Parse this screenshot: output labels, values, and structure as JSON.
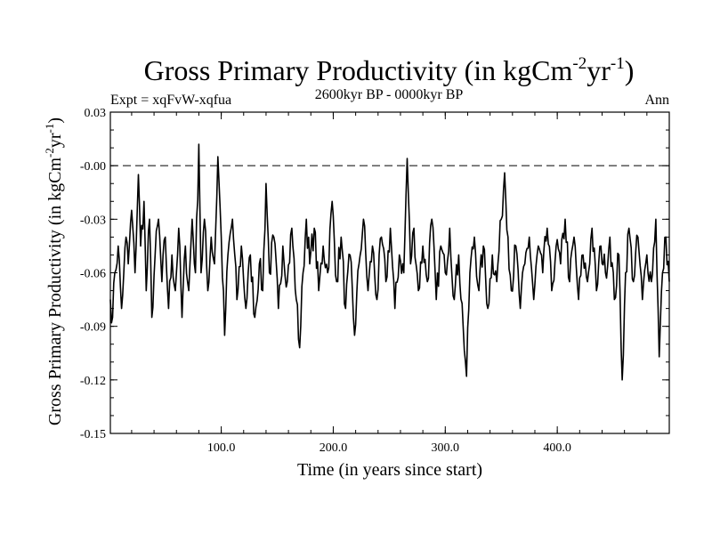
{
  "chart_data": {
    "type": "line",
    "title": "Gross Primary Productivity (in kgCm",
    "title_sup1": "-2",
    "title_mid": "yr",
    "title_sup2": "-1",
    "title_end": ")",
    "subtitle_left": "Expt = xqFvW-xqfua",
    "subtitle_center": "2600kyr BP - 0000kyr BP",
    "subtitle_right": "Ann",
    "xlabel": "Time (in years since start)",
    "ylabel": "Gross Primary Productivity (in kgCm",
    "ylabel_sup1": "-2",
    "ylabel_mid": "yr",
    "ylabel_sup2": "-1",
    "ylabel_end": ")",
    "xlim": [
      1,
      500
    ],
    "ylim": [
      -0.15,
      0.03
    ],
    "xticks": [
      100,
      200,
      300,
      400
    ],
    "xtick_labels": [
      "100.0",
      "200.0",
      "300.0",
      "400.0"
    ],
    "yticks": [
      0.03,
      0.0,
      -0.03,
      -0.06,
      -0.09,
      -0.12,
      -0.15
    ],
    "ytick_labels": [
      "0.03",
      "-0.00",
      "-0.03",
      "-0.06",
      "-0.09",
      "-0.12",
      "-0.15"
    ],
    "reference_line": 0.0,
    "keypoints": [
      [
        1,
        -0.075
      ],
      [
        3,
        -0.085
      ],
      [
        5,
        -0.06
      ],
      [
        8,
        -0.045
      ],
      [
        11,
        -0.08
      ],
      [
        13,
        -0.06
      ],
      [
        15,
        -0.04
      ],
      [
        17,
        -0.055
      ],
      [
        20,
        -0.025
      ],
      [
        23,
        -0.06
      ],
      [
        26,
        -0.005
      ],
      [
        28,
        -0.045
      ],
      [
        31,
        -0.02
      ],
      [
        33,
        -0.07
      ],
      [
        36,
        -0.03
      ],
      [
        38,
        -0.085
      ],
      [
        41,
        -0.05
      ],
      [
        44,
        -0.03
      ],
      [
        47,
        -0.065
      ],
      [
        50,
        -0.04
      ],
      [
        53,
        -0.08
      ],
      [
        56,
        -0.05
      ],
      [
        59,
        -0.07
      ],
      [
        62,
        -0.035
      ],
      [
        65,
        -0.085
      ],
      [
        68,
        -0.045
      ],
      [
        71,
        -0.07
      ],
      [
        74,
        -0.03
      ],
      [
        77,
        -0.06
      ],
      [
        80,
        0.012
      ],
      [
        82,
        -0.06
      ],
      [
        85,
        -0.03
      ],
      [
        88,
        -0.07
      ],
      [
        91,
        -0.04
      ],
      [
        94,
        -0.055
      ],
      [
        97,
        0.005
      ],
      [
        100,
        -0.04
      ],
      [
        103,
        -0.095
      ],
      [
        106,
        -0.05
      ],
      [
        110,
        -0.03
      ],
      [
        114,
        -0.075
      ],
      [
        118,
        -0.045
      ],
      [
        122,
        -0.08
      ],
      [
        126,
        -0.05
      ],
      [
        130,
        -0.085
      ],
      [
        134,
        -0.055
      ],
      [
        137,
        -0.07
      ],
      [
        140,
        -0.01
      ],
      [
        143,
        -0.06
      ],
      [
        147,
        -0.04
      ],
      [
        151,
        -0.08
      ],
      [
        155,
        -0.045
      ],
      [
        159,
        -0.065
      ],
      [
        163,
        -0.035
      ],
      [
        167,
        -0.075
      ],
      [
        170,
        -0.102
      ],
      [
        173,
        -0.06
      ],
      [
        176,
        -0.03
      ],
      [
        179,
        -0.055
      ],
      [
        183,
        -0.035
      ],
      [
        187,
        -0.07
      ],
      [
        191,
        -0.045
      ],
      [
        195,
        -0.06
      ],
      [
        199,
        -0.02
      ],
      [
        203,
        -0.065
      ],
      [
        207,
        -0.04
      ],
      [
        211,
        -0.08
      ],
      [
        215,
        -0.05
      ],
      [
        219,
        -0.095
      ],
      [
        223,
        -0.055
      ],
      [
        227,
        -0.03
      ],
      [
        231,
        -0.07
      ],
      [
        235,
        -0.045
      ],
      [
        239,
        -0.075
      ],
      [
        243,
        -0.04
      ],
      [
        247,
        -0.065
      ],
      [
        251,
        -0.035
      ],
      [
        255,
        -0.08
      ],
      [
        259,
        -0.05
      ],
      [
        263,
        -0.06
      ],
      [
        266,
        0.004
      ],
      [
        269,
        -0.055
      ],
      [
        272,
        -0.035
      ],
      [
        276,
        -0.07
      ],
      [
        280,
        -0.045
      ],
      [
        284,
        -0.065
      ],
      [
        288,
        -0.03
      ],
      [
        292,
        -0.075
      ],
      [
        296,
        -0.045
      ],
      [
        300,
        -0.06
      ],
      [
        304,
        -0.035
      ],
      [
        308,
        -0.075
      ],
      [
        312,
        -0.05
      ],
      [
        316,
        -0.09
      ],
      [
        319,
        -0.118
      ],
      [
        322,
        -0.06
      ],
      [
        326,
        -0.04
      ],
      [
        330,
        -0.07
      ],
      [
        334,
        -0.045
      ],
      [
        338,
        -0.08
      ],
      [
        342,
        -0.05
      ],
      [
        346,
        -0.065
      ],
      [
        350,
        -0.03
      ],
      [
        353,
        -0.004
      ],
      [
        356,
        -0.04
      ],
      [
        359,
        -0.07
      ],
      [
        363,
        -0.045
      ],
      [
        367,
        -0.08
      ],
      [
        371,
        -0.055
      ],
      [
        375,
        -0.04
      ],
      [
        379,
        -0.075
      ],
      [
        383,
        -0.045
      ],
      [
        387,
        -0.06
      ],
      [
        391,
        -0.035
      ],
      [
        395,
        -0.07
      ],
      [
        399,
        -0.045
      ],
      [
        403,
        -0.055
      ],
      [
        407,
        -0.03
      ],
      [
        411,
        -0.065
      ],
      [
        415,
        -0.04
      ],
      [
        419,
        -0.075
      ],
      [
        423,
        -0.05
      ],
      [
        427,
        -0.065
      ],
      [
        431,
        -0.035
      ],
      [
        435,
        -0.07
      ],
      [
        439,
        -0.045
      ],
      [
        443,
        -0.06
      ],
      [
        447,
        -0.04
      ],
      [
        451,
        -0.075
      ],
      [
        455,
        -0.05
      ],
      [
        458,
        -0.12
      ],
      [
        461,
        -0.06
      ],
      [
        464,
        -0.035
      ],
      [
        468,
        -0.065
      ],
      [
        472,
        -0.04
      ],
      [
        476,
        -0.075
      ],
      [
        480,
        -0.05
      ],
      [
        484,
        -0.065
      ],
      [
        488,
        -0.03
      ],
      [
        491,
        -0.107
      ],
      [
        494,
        -0.06
      ],
      [
        497,
        -0.04
      ],
      [
        500,
        -0.065
      ]
    ]
  }
}
